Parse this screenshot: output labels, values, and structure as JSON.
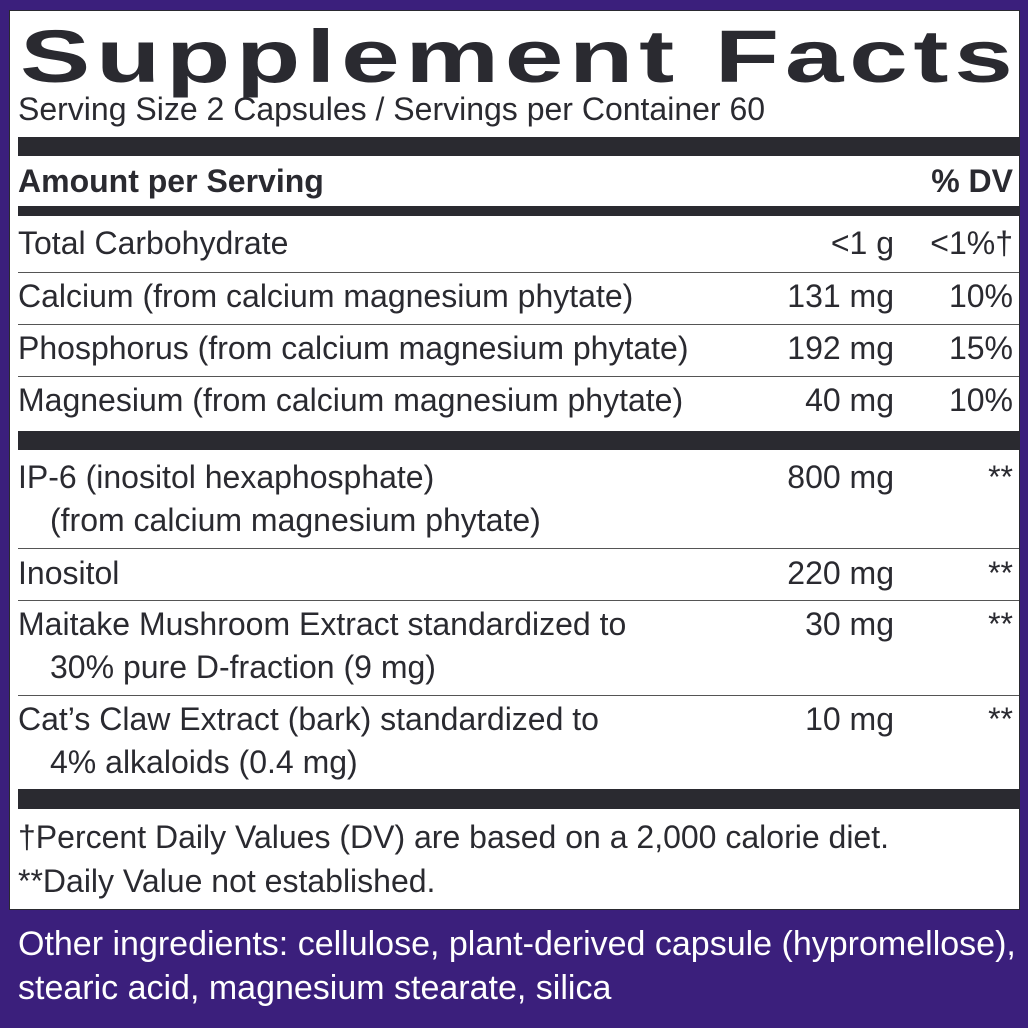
{
  "title": "Supplement Facts",
  "serving": "Serving Size 2 Capsules / Servings per Container 60",
  "header": {
    "amount": "Amount per Serving",
    "dv": "% DV"
  },
  "rows_a": [
    {
      "name": "Total Carbohydrate",
      "amount": "<1 g",
      "dv": "<1%†"
    },
    {
      "name": "Calcium (from calcium magnesium phytate)",
      "amount": "131 mg",
      "dv": "10%"
    },
    {
      "name": "Phosphorus (from calcium magnesium phytate)",
      "amount": "192 mg",
      "dv": "15%"
    },
    {
      "name": "Magnesium (from calcium magnesium phytate)",
      "amount": "40 mg",
      "dv": "10%"
    }
  ],
  "rows_b": [
    {
      "name": "IP-6 (inositol hexaphosphate)",
      "sub": "(from calcium magnesium phytate)",
      "amount": "800 mg",
      "dv": "**"
    },
    {
      "name": "Inositol",
      "amount": "220 mg",
      "dv": "**"
    },
    {
      "name": "Maitake Mushroom Extract standardized to",
      "sub": "30% pure D-fraction (9 mg)",
      "amount": "30 mg",
      "dv": "**"
    },
    {
      "name": "Cat’s Claw Extract (bark) standardized to",
      "sub": "4% alkaloids (0.4 mg)",
      "amount": "10 mg",
      "dv": "**"
    }
  ],
  "footnotes": [
    "†Percent Daily Values (DV) are based on a 2,000 calorie diet.",
    "**Daily Value not established."
  ],
  "other_ingredients": "Other ingredients: cellulose, plant-derived capsule (hypromellose), stearic acid, magnesium stearate, silica",
  "colors": {
    "background": "#3b1f7c",
    "text": "#2a2a30",
    "panel": "#ffffff"
  }
}
